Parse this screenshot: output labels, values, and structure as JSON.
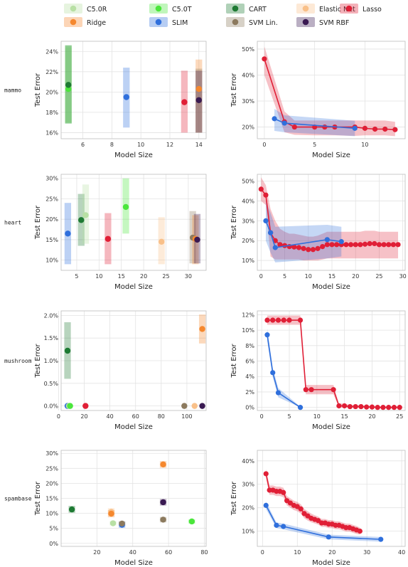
{
  "legend": [
    {
      "name": "C5.0R",
      "color": "#b8e0a4"
    },
    {
      "name": "C5.0T",
      "color": "#4be63c"
    },
    {
      "name": "CART",
      "color": "#1e7a33"
    },
    {
      "name": "Elastic Net",
      "color": "#f9c089"
    },
    {
      "name": "Lasso",
      "color": "#e01f36"
    },
    {
      "name": "Ridge",
      "color": "#f5882e"
    },
    {
      "name": "SLIM",
      "color": "#2f6fdc"
    },
    {
      "name": "SVM Lin.",
      "color": "#8c7a5e"
    },
    {
      "name": "SVM RBF",
      "color": "#3a1a52"
    }
  ],
  "chart_data": [
    {
      "type": "scatter",
      "dataset": "mammo",
      "panel": "left",
      "xlabel": "Model Size",
      "ylabel": "Test Error",
      "xlim": [
        4.5,
        14.5
      ],
      "ylim": [
        15.4,
        25.0
      ],
      "xticks": [
        6,
        8,
        10,
        12,
        14
      ],
      "xtick_labels": [
        "6",
        "8",
        "10",
        "12",
        "14"
      ],
      "yticks": [
        16,
        18,
        20,
        22,
        24
      ],
      "ytick_labels": [
        "16%",
        "18%",
        "20%",
        "22%",
        "24%"
      ],
      "points": [
        {
          "method": "C5.0R",
          "x": 5,
          "y": 20.5,
          "lo": 17.0,
          "hi": 24.4
        },
        {
          "method": "C5.0T",
          "x": 5,
          "y": 20.3,
          "lo": 16.9,
          "hi": 24.6
        },
        {
          "method": "CART",
          "x": 5,
          "y": 20.7,
          "lo": 16.9,
          "hi": 24.6
        },
        {
          "method": "SLIM",
          "x": 9,
          "y": 19.5,
          "lo": 16.5,
          "hi": 22.4
        },
        {
          "method": "Lasso",
          "x": 13,
          "y": 19.0,
          "lo": 16.0,
          "hi": 22.1
        },
        {
          "method": "Ridge",
          "x": 14,
          "y": 20.3,
          "lo": 16.0,
          "hi": 23.2
        },
        {
          "method": "SVM Lin.",
          "x": 14,
          "y": 19.2,
          "lo": 16.0,
          "hi": 22.3
        },
        {
          "method": "SVM RBF",
          "x": 14,
          "y": 19.2,
          "lo": 16.0,
          "hi": 22.1
        }
      ]
    },
    {
      "type": "line",
      "dataset": "mammo",
      "panel": "right",
      "xlabel": "Model Size",
      "ylabel": "Test Error",
      "xlim": [
        -0.7,
        14.0
      ],
      "ylim": [
        15.5,
        53.0
      ],
      "xticks": [
        0,
        5,
        10
      ],
      "xtick_labels": [
        "0",
        "5",
        "10"
      ],
      "yticks": [
        20,
        30,
        40,
        50
      ],
      "ytick_labels": [
        "20%",
        "30%",
        "40%",
        "50%"
      ],
      "series": [
        {
          "method": "Lasso",
          "x": [
            0,
            2,
            3,
            5,
            6,
            7,
            9,
            10,
            11,
            12,
            13
          ],
          "y": [
            46.2,
            22.0,
            20.0,
            20.0,
            20.0,
            20.0,
            20.0,
            19.5,
            19.2,
            19.2,
            19.0
          ],
          "lo": [
            40.0,
            18.0,
            17.0,
            16.8,
            16.8,
            16.8,
            16.6,
            16.8,
            16.8,
            16.8,
            16.5
          ],
          "hi": [
            51.0,
            26.0,
            22.5,
            22.5,
            22.5,
            22.5,
            22.5,
            22.5,
            22.5,
            22.5,
            22.0
          ]
        },
        {
          "method": "SLIM",
          "x": [
            1,
            2,
            9
          ],
          "y": [
            23.2,
            21.5,
            19.5
          ],
          "lo": [
            18.5,
            18.0,
            16.5
          ],
          "hi": [
            27.0,
            24.5,
            22.4
          ]
        }
      ]
    },
    {
      "type": "scatter",
      "dataset": "heart",
      "panel": "left",
      "xlabel": "Model Size",
      "ylabel": "Test Error",
      "xlim": [
        1.5,
        34.0
      ],
      "ylim": [
        7.5,
        31.0
      ],
      "xticks": [
        5,
        10,
        15,
        20,
        25,
        30
      ],
      "xtick_labels": [
        "5",
        "10",
        "15",
        "20",
        "25",
        "30"
      ],
      "yticks": [
        10,
        15,
        20,
        25,
        30
      ],
      "ytick_labels": [
        "10%",
        "15%",
        "20%",
        "25%",
        "30%"
      ],
      "points": [
        {
          "method": "SLIM",
          "x": 3,
          "y": 16.5,
          "lo": 9.0,
          "hi": 24.0
        },
        {
          "method": "CART",
          "x": 6,
          "y": 19.8,
          "lo": 13.5,
          "hi": 26.2
        },
        {
          "method": "C5.0R",
          "x": 7,
          "y": 21.0,
          "lo": 14.0,
          "hi": 28.5
        },
        {
          "method": "Lasso",
          "x": 12,
          "y": 15.2,
          "lo": 9.0,
          "hi": 21.5
        },
        {
          "method": "C5.0T",
          "x": 16,
          "y": 23.0,
          "lo": 16.5,
          "hi": 30.0
        },
        {
          "method": "Elastic Net",
          "x": 24,
          "y": 14.5,
          "lo": 9.0,
          "hi": 20.5
        },
        {
          "method": "SVM Lin.",
          "x": 31,
          "y": 15.5,
          "lo": 9.2,
          "hi": 22.0
        },
        {
          "method": "Ridge",
          "x": 31.6,
          "y": 15.2,
          "lo": 9.0,
          "hi": 21.0
        },
        {
          "method": "SVM RBF",
          "x": 32,
          "y": 15.0,
          "lo": 9.2,
          "hi": 21.3
        }
      ]
    },
    {
      "type": "line",
      "dataset": "heart",
      "panel": "right",
      "xlabel": "Model Size",
      "ylabel": "Test Error",
      "xlim": [
        -0.8,
        30.5
      ],
      "ylim": [
        5.0,
        53.5
      ],
      "xticks": [
        0,
        5,
        10,
        15,
        20,
        25,
        30
      ],
      "xtick_labels": [
        "0",
        "5",
        "10",
        "15",
        "20",
        "25",
        "30"
      ],
      "yticks": [
        10,
        20,
        30,
        40,
        50
      ],
      "ytick_labels": [
        "10%",
        "20%",
        "30%",
        "40%",
        "50%"
      ],
      "series": [
        {
          "method": "Lasso",
          "x": [
            0,
            1,
            2,
            3,
            4,
            5,
            6,
            7,
            8,
            9,
            10,
            11,
            12,
            13,
            14,
            15,
            16,
            17,
            18,
            19,
            20,
            21,
            22,
            23,
            24,
            25,
            26,
            27,
            28,
            29
          ],
          "y": [
            46.0,
            43.0,
            24.0,
            20.0,
            18.0,
            17.5,
            17.0,
            16.8,
            16.5,
            16.0,
            15.5,
            15.5,
            16.0,
            17.0,
            18.0,
            18.0,
            18.0,
            18.0,
            18.0,
            18.0,
            18.0,
            18.0,
            18.2,
            18.5,
            18.5,
            18.0,
            18.0,
            18.0,
            18.0,
            18.0
          ],
          "lo": [
            40.0,
            38.0,
            12.0,
            10.5,
            10.5,
            10.5,
            10.5,
            10.5,
            10.5,
            10.0,
            10.0,
            10.0,
            10.0,
            10.5,
            11.0,
            11.0,
            11.0,
            11.0,
            11.0,
            11.0,
            11.0,
            11.0,
            11.0,
            11.0,
            11.0,
            11.0,
            11.0,
            11.0,
            11.0,
            11.0
          ],
          "hi": [
            52.0,
            48.0,
            36.0,
            30.0,
            26.0,
            24.5,
            23.5,
            23.5,
            23.0,
            22.5,
            22.0,
            22.0,
            22.5,
            23.5,
            24.5,
            24.5,
            24.5,
            24.5,
            24.5,
            24.5,
            24.5,
            24.5,
            25.0,
            25.0,
            25.0,
            24.5,
            24.5,
            24.5,
            24.5,
            24.5
          ]
        },
        {
          "method": "SLIM",
          "x": [
            1,
            2,
            3,
            14,
            17
          ],
          "y": [
            30.0,
            24.0,
            16.5,
            20.5,
            19.5
          ],
          "lo": [
            20.0,
            14.0,
            9.0,
            11.0,
            12.0
          ],
          "hi": [
            40.0,
            34.0,
            27.0,
            28.0,
            27.0
          ]
        }
      ]
    },
    {
      "type": "scatter",
      "dataset": "mushroom",
      "panel": "left",
      "xlabel": "Model Size",
      "ylabel": "Test Error",
      "xlim": [
        2.0,
        115.0
      ],
      "ylim": [
        -0.1,
        2.1
      ],
      "xticks": [
        0,
        20,
        40,
        60,
        80,
        100
      ],
      "xtick_labels": [
        "0",
        "20",
        "40",
        "60",
        "80",
        "100"
      ],
      "yticks": [
        0,
        0.5,
        1.0,
        1.5,
        2.0
      ],
      "ytick_labels": [
        "0.0%",
        "0.5%",
        "1.0%",
        "1.5%",
        "2.0%"
      ],
      "points": [
        {
          "method": "SLIM",
          "x": 7,
          "y": 0.0,
          "lo": 0.0,
          "hi": 0.0
        },
        {
          "method": "C5.0R",
          "x": 8,
          "y": 0.0,
          "lo": 0.0,
          "hi": 0.0
        },
        {
          "method": "CART",
          "x": 7,
          "y": 1.22,
          "lo": 0.6,
          "hi": 1.85
        },
        {
          "method": "C5.0T",
          "x": 9,
          "y": 0.0,
          "lo": 0.0,
          "hi": 0.0
        },
        {
          "method": "Lasso",
          "x": 21,
          "y": 0.0,
          "lo": 0.0,
          "hi": 0.0
        },
        {
          "method": "SVM Lin.",
          "x": 98,
          "y": 0.0,
          "lo": 0.0,
          "hi": 0.0
        },
        {
          "method": "Elastic Net",
          "x": 106,
          "y": 0.0,
          "lo": 0.0,
          "hi": 0.0
        },
        {
          "method": "Ridge",
          "x": 112,
          "y": 1.7,
          "lo": 1.38,
          "hi": 2.02
        },
        {
          "method": "SVM RBF",
          "x": 112,
          "y": 0.0,
          "lo": 0.0,
          "hi": 0.0
        }
      ]
    },
    {
      "type": "line",
      "dataset": "mushroom",
      "panel": "right",
      "xlabel": "Model Size",
      "ylabel": "Test Error",
      "xlim": [
        -0.8,
        26.0
      ],
      "ylim": [
        -0.4,
        12.5
      ],
      "xticks": [
        0,
        5,
        10,
        15,
        20,
        25
      ],
      "xtick_labels": [
        "0",
        "5",
        "10",
        "15",
        "20",
        "25"
      ],
      "yticks": [
        0,
        2,
        4,
        6,
        8,
        10,
        12
      ],
      "ytick_labels": [
        "0%",
        "2%",
        "4%",
        "6%",
        "8%",
        "10%",
        "12%"
      ],
      "series": [
        {
          "method": "Lasso",
          "x": [
            1,
            2,
            3,
            4,
            5,
            7,
            8,
            9,
            13,
            14,
            15,
            16,
            17,
            18,
            19,
            20,
            21,
            22,
            23,
            24,
            25
          ],
          "y": [
            11.3,
            11.3,
            11.3,
            11.3,
            11.3,
            11.3,
            2.3,
            2.3,
            2.3,
            0.2,
            0.2,
            0.1,
            0.1,
            0.1,
            0.05,
            0.05,
            0.0,
            0.0,
            0.0,
            0.0,
            0.0
          ],
          "lo": [
            10.7,
            10.7,
            10.7,
            10.7,
            10.7,
            10.7,
            1.7,
            1.7,
            1.7,
            0.0,
            0.0,
            0.0,
            0.0,
            0.0,
            0.0,
            0.0,
            0.0,
            0.0,
            0.0,
            0.0,
            0.0
          ],
          "hi": [
            11.9,
            11.9,
            11.9,
            11.9,
            11.9,
            11.9,
            2.9,
            2.9,
            2.9,
            0.5,
            0.5,
            0.3,
            0.3,
            0.3,
            0.2,
            0.2,
            0.1,
            0.1,
            0.1,
            0.1,
            0.1
          ]
        },
        {
          "method": "SLIM",
          "x": [
            1,
            2,
            3,
            7
          ],
          "y": [
            9.4,
            4.5,
            1.9,
            0.0
          ],
          "lo": [
            8.6,
            3.9,
            1.3,
            0.0
          ],
          "hi": [
            10.2,
            5.1,
            2.5,
            0.1
          ]
        }
      ]
    },
    {
      "type": "scatter",
      "dataset": "spambase",
      "panel": "left",
      "xlabel": "Model Size",
      "ylabel": "Test Error",
      "xlim": [
        0.0,
        81.0
      ],
      "ylim": [
        -1.0,
        31.0
      ],
      "xticks": [
        20,
        40,
        60,
        80
      ],
      "xtick_labels": [
        "20",
        "40",
        "60",
        "80"
      ],
      "yticks": [
        0,
        5,
        10,
        15,
        20,
        25,
        30
      ],
      "ytick_labels": [
        "0%",
        "5%",
        "10%",
        "15%",
        "20%",
        "25%",
        "30%"
      ],
      "points": [
        {
          "method": "CART",
          "x": 6,
          "y": 11.3,
          "lo": 10.2,
          "hi": 12.5
        },
        {
          "method": "Elastic Net",
          "x": 28,
          "y": 10.5,
          "lo": 9.3,
          "hi": 11.7
        },
        {
          "method": "Ridge",
          "x": 28,
          "y": 9.9,
          "lo": 8.7,
          "hi": 11.1
        },
        {
          "method": "C5.0R",
          "x": 29,
          "y": 6.7,
          "lo": 6.0,
          "hi": 7.4
        },
        {
          "method": "SLIM",
          "x": 34,
          "y": 6.2,
          "lo": 5.2,
          "hi": 7.2
        },
        {
          "method": "SVM Lin.",
          "x": 34,
          "y": 6.6,
          "lo": 5.8,
          "hi": 7.4
        },
        {
          "method": "Ridge",
          "x": 57,
          "y": 26.3,
          "lo": 25.2,
          "hi": 27.4
        },
        {
          "method": "SVM RBF",
          "x": 57,
          "y": 13.7,
          "lo": 12.6,
          "hi": 14.8
        },
        {
          "method": "SVM Lin.",
          "x": 57,
          "y": 7.9,
          "lo": 7.0,
          "hi": 8.8
        },
        {
          "method": "C5.0T",
          "x": 73,
          "y": 7.3,
          "lo": 6.6,
          "hi": 8.0
        }
      ]
    },
    {
      "type": "line",
      "dataset": "spambase",
      "panel": "right",
      "xlabel": "Model Size",
      "ylabel": "Test Error",
      "xlim": [
        -1.5,
        41.0
      ],
      "ylim": [
        3.5,
        44.5
      ],
      "xticks": [
        0,
        10,
        20,
        30,
        40
      ],
      "xtick_labels": [
        "0",
        "10",
        "20",
        "30",
        "40"
      ],
      "yticks": [
        10,
        20,
        30,
        40
      ],
      "ytick_labels": [
        "10%",
        "20%",
        "30%",
        "40%"
      ],
      "series": [
        {
          "method": "Lasso",
          "x": [
            1,
            2,
            3,
            4,
            5,
            6,
            7,
            8,
            9,
            10,
            11,
            12,
            13,
            14,
            15,
            16,
            17,
            18,
            19,
            20,
            21,
            22,
            23,
            24,
            25,
            26,
            27,
            28
          ],
          "y": [
            34.5,
            27.5,
            27.5,
            27.0,
            27.0,
            26.5,
            23.0,
            22.0,
            21.0,
            20.5,
            19.5,
            17.5,
            16.5,
            15.5,
            15.0,
            14.5,
            13.5,
            13.5,
            13.0,
            13.0,
            12.5,
            12.5,
            12.0,
            11.5,
            11.5,
            11.0,
            10.5,
            10.0
          ],
          "lo": [
            32.5,
            25.5,
            25.5,
            25.0,
            25.0,
            24.5,
            21.0,
            20.0,
            19.0,
            18.5,
            17.5,
            15.5,
            14.5,
            13.8,
            13.3,
            12.8,
            11.8,
            11.8,
            11.3,
            11.3,
            10.8,
            10.8,
            10.3,
            9.8,
            9.8,
            9.3,
            8.8,
            8.5
          ],
          "hi": [
            36.5,
            29.5,
            29.5,
            29.0,
            29.0,
            28.5,
            25.0,
            24.0,
            23.0,
            22.5,
            21.5,
            19.5,
            18.5,
            17.5,
            16.8,
            16.2,
            15.2,
            15.2,
            14.7,
            14.7,
            14.2,
            14.2,
            13.7,
            13.2,
            13.2,
            12.7,
            12.2,
            11.5
          ]
        },
        {
          "method": "SLIM",
          "x": [
            1,
            4,
            6,
            19,
            34
          ],
          "y": [
            21.0,
            12.5,
            12.0,
            7.5,
            6.5
          ],
          "lo": [
            19.5,
            11.3,
            10.8,
            6.5,
            5.5
          ],
          "hi": [
            22.5,
            13.7,
            13.2,
            8.5,
            7.5
          ]
        }
      ]
    }
  ]
}
